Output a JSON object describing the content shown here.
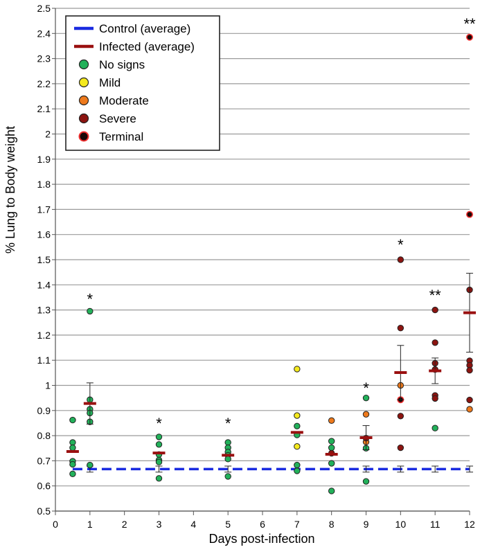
{
  "chart_data": {
    "type": "scatter",
    "title": "",
    "xlabel": "Days post-infection",
    "ylabel": "% Lung to Body weight",
    "xlim": [
      0,
      12
    ],
    "ylim": [
      0.5,
      2.5
    ],
    "x_ticks": [
      "0",
      "1",
      "2",
      "3",
      "4",
      "5",
      "6",
      "7",
      "8",
      "9",
      "10",
      "11",
      "12"
    ],
    "y_ticks": [
      "0.5",
      "0.6",
      "0.7",
      "0.8",
      "0.9",
      "1",
      "1.1",
      "1.2",
      "1.3",
      "1.4",
      "1.5",
      "1.6",
      "1.7",
      "1.8",
      "1.9",
      "2",
      "2.1",
      "2.2",
      "2.3",
      "2.4",
      "2.5"
    ],
    "grid": "horizontal",
    "legend_position": "top-left",
    "legend": [
      {
        "label": "Control (average)",
        "kind": "line",
        "color": "#1a2be0",
        "dashed": true
      },
      {
        "label": "Infected (average)",
        "kind": "line",
        "color": "#9a1010",
        "dashed": false
      },
      {
        "label": "No signs",
        "kind": "point",
        "color": "#22b15a"
      },
      {
        "label": "Mild",
        "kind": "point",
        "color": "#f5ea1e"
      },
      {
        "label": "Moderate",
        "kind": "point",
        "color": "#ee7a1c"
      },
      {
        "label": "Severe",
        "kind": "point",
        "color": "#8c1410"
      },
      {
        "label": "Terminal",
        "kind": "point",
        "color": "#1a0606",
        "edge": "#f03030"
      }
    ],
    "series": [
      {
        "name": "No signs",
        "points": [
          [
            0.5,
            0.862
          ],
          [
            0.5,
            0.773
          ],
          [
            0.5,
            0.752
          ],
          [
            0.5,
            0.698
          ],
          [
            0.5,
            0.686
          ],
          [
            0.5,
            0.648
          ],
          [
            1,
            1.295
          ],
          [
            1,
            0.943
          ],
          [
            1,
            0.905
          ],
          [
            1,
            0.89
          ],
          [
            1,
            0.855
          ],
          [
            1,
            0.683
          ],
          [
            3,
            0.795
          ],
          [
            3,
            0.765
          ],
          [
            3,
            0.725
          ],
          [
            3,
            0.703
          ],
          [
            3,
            0.695
          ],
          [
            3,
            0.63
          ],
          [
            5,
            0.773
          ],
          [
            5,
            0.752
          ],
          [
            5,
            0.735
          ],
          [
            5,
            0.722
          ],
          [
            5,
            0.707
          ],
          [
            5,
            0.638
          ],
          [
            7,
            0.838
          ],
          [
            7,
            0.803
          ],
          [
            7,
            0.683
          ],
          [
            7,
            0.66
          ],
          [
            8,
            0.778
          ],
          [
            8,
            0.752
          ],
          [
            8,
            0.69
          ],
          [
            8,
            0.58
          ],
          [
            9,
            0.95
          ],
          [
            9,
            0.75
          ],
          [
            9,
            0.618
          ],
          [
            11,
            0.83
          ]
        ]
      },
      {
        "name": "Mild",
        "points": [
          [
            7,
            1.065
          ],
          [
            7,
            0.88
          ],
          [
            7,
            0.757
          ]
        ]
      },
      {
        "name": "Moderate",
        "points": [
          [
            8,
            0.86
          ],
          [
            9,
            0.885
          ],
          [
            9,
            0.775
          ],
          [
            10,
            1.0
          ],
          [
            12,
            0.905
          ]
        ]
      },
      {
        "name": "Severe",
        "points": [
          [
            8,
            0.73
          ],
          [
            9,
            0.79
          ],
          [
            10,
            1.5
          ],
          [
            10,
            1.228
          ],
          [
            10,
            0.878
          ],
          [
            10,
            0.752
          ],
          [
            11,
            1.3
          ],
          [
            11,
            1.17
          ],
          [
            11,
            1.088
          ],
          [
            11,
            1.063
          ],
          [
            11,
            0.96
          ],
          [
            11,
            0.948
          ],
          [
            12,
            1.38
          ],
          [
            12,
            1.098
          ],
          [
            12,
            1.08
          ],
          [
            12,
            1.06
          ],
          [
            12,
            0.942
          ]
        ]
      },
      {
        "name": "Terminal",
        "points": [
          [
            10,
            0.943
          ],
          [
            12,
            2.385
          ],
          [
            12,
            1.68
          ]
        ]
      }
    ],
    "control_average": {
      "value": 0.667,
      "x_range": [
        0.5,
        12
      ]
    },
    "control_error_bars": [
      {
        "x": 1,
        "y": 0.667,
        "err": 0.012
      },
      {
        "x": 3,
        "y": 0.667,
        "err": 0.012
      },
      {
        "x": 5,
        "y": 0.667,
        "err": 0.012
      },
      {
        "x": 9,
        "y": 0.667,
        "err": 0.012
      },
      {
        "x": 10,
        "y": 0.667,
        "err": 0.012
      },
      {
        "x": 11,
        "y": 0.667,
        "err": 0.012
      },
      {
        "x": 12,
        "y": 0.667,
        "err": 0.012
      }
    ],
    "infected_average": [
      {
        "x": 0.5,
        "y": 0.737,
        "err": 0.0
      },
      {
        "x": 1,
        "y": 0.928,
        "err": 0.082
      },
      {
        "x": 3,
        "y": 0.731,
        "err": 0.0
      },
      {
        "x": 5,
        "y": 0.722,
        "err": 0.0
      },
      {
        "x": 7,
        "y": 0.813,
        "err": 0.0
      },
      {
        "x": 8,
        "y": 0.726,
        "err": 0.0
      },
      {
        "x": 9,
        "y": 0.792,
        "err": 0.048
      },
      {
        "x": 10,
        "y": 1.051,
        "err": 0.108
      },
      {
        "x": 11,
        "y": 1.058,
        "err": 0.051
      },
      {
        "x": 12,
        "y": 1.289,
        "err": 0.157
      }
    ],
    "annotations": [
      {
        "x": 1,
        "y": 1.345,
        "text": "*"
      },
      {
        "x": 3,
        "y": 0.85,
        "text": "*"
      },
      {
        "x": 5,
        "y": 0.85,
        "text": "*"
      },
      {
        "x": 9,
        "y": 0.99,
        "text": "*"
      },
      {
        "x": 10,
        "y": 1.56,
        "text": "*"
      },
      {
        "x": 11,
        "y": 1.36,
        "text": "**"
      },
      {
        "x": 12,
        "y": 2.44,
        "text": "**"
      }
    ]
  }
}
